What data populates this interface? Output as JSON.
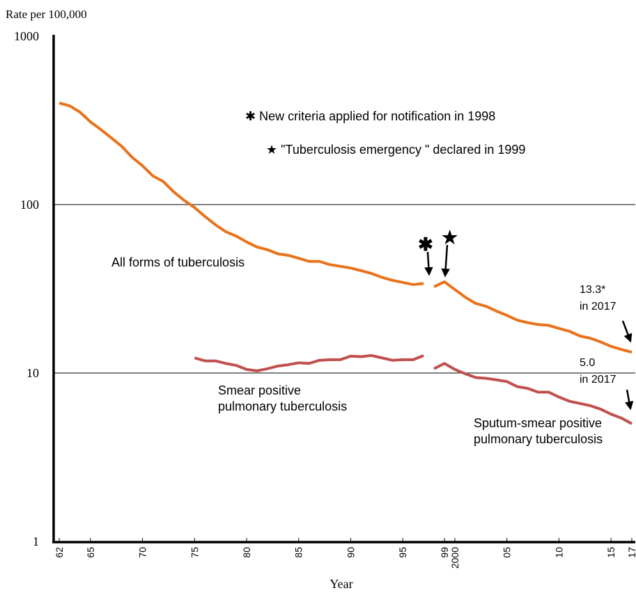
{
  "chart_data": {
    "type": "line",
    "y_label": "Rate per 100,000",
    "x_label": "Year",
    "yscale": "log",
    "ylim": [
      1,
      1000
    ],
    "yticks": [
      1,
      10,
      100,
      1000
    ],
    "xlim": [
      1962,
      2017
    ],
    "xticks": [
      {
        "value": 1962,
        "label": "62"
      },
      {
        "value": 1965,
        "label": "65"
      },
      {
        "value": 1970,
        "label": "70"
      },
      {
        "value": 1975,
        "label": "75"
      },
      {
        "value": 1980,
        "label": "80"
      },
      {
        "value": 1985,
        "label": "85"
      },
      {
        "value": 1990,
        "label": "90"
      },
      {
        "value": 1995,
        "label": "95"
      },
      {
        "value": 1999,
        "label": "99"
      },
      2000,
      {
        "value": 2005,
        "label": "05"
      },
      {
        "value": 2010,
        "label": "10"
      },
      {
        "value": 2015,
        "label": "15"
      },
      {
        "value": 2017,
        "label": "17"
      }
    ],
    "grid": true,
    "series": [
      {
        "name": "All forms of tuberculosis",
        "color": "#e8731c",
        "x": [
          1962,
          1963,
          1964,
          1965,
          1966,
          1967,
          1968,
          1969,
          1970,
          1971,
          1972,
          1973,
          1974,
          1975,
          1976,
          1977,
          1978,
          1979,
          1980,
          1981,
          1982,
          1983,
          1984,
          1985,
          1986,
          1987,
          1988,
          1989,
          1990,
          1991,
          1992,
          1993,
          1994,
          1995,
          1996,
          1997
        ],
        "values": [
          401,
          386,
          354,
          310,
          279,
          249,
          222,
          191,
          170,
          148,
          137,
          119,
          106,
          96,
          85,
          76,
          69,
          65,
          60,
          56,
          54,
          51,
          50,
          48,
          46,
          46,
          44,
          43,
          42,
          40.5,
          39,
          37,
          35.5,
          34.5,
          33.5,
          34
        ]
      },
      {
        "color": "#e8731c",
        "x": [
          1998,
          1999,
          2000,
          2001,
          2002,
          2003,
          2004,
          2005,
          2006,
          2007,
          2008,
          2009,
          2010,
          2011,
          2012,
          2013,
          2014,
          2015,
          2016,
          2017
        ],
        "values": [
          32.5,
          34.8,
          31.3,
          28.2,
          25.9,
          24.9,
          23.3,
          22.0,
          20.6,
          19.9,
          19.4,
          19.2,
          18.4,
          17.7,
          16.6,
          16.1,
          15.3,
          14.4,
          13.8,
          13.3
        ]
      },
      {
        "name": "Smear positive\npulmonary tuberculosis",
        "color": "#c0504d",
        "x": [
          1975,
          1976,
          1977,
          1978,
          1979,
          1980,
          1981,
          1982,
          1983,
          1984,
          1985,
          1986,
          1987,
          1988,
          1989,
          1990,
          1991,
          1992,
          1993,
          1994,
          1995,
          1996,
          1997
        ],
        "values": [
          12.3,
          11.8,
          11.8,
          11.4,
          11.1,
          10.5,
          10.3,
          10.6,
          11.0,
          11.2,
          11.5,
          11.4,
          11.9,
          12.0,
          12.0,
          12.6,
          12.5,
          12.7,
          12.3,
          11.9,
          12.0,
          12.0,
          12.7
        ]
      },
      {
        "name": "Sputum-smear positive\npulmonary tuberculosis",
        "color": "#c0504d",
        "x": [
          1998,
          1999,
          2000,
          2001,
          2002,
          2003,
          2004,
          2005,
          2006,
          2007,
          2008,
          2009,
          2010,
          2011,
          2012,
          2013,
          2014,
          2015,
          2016,
          2017
        ],
        "values": [
          10.6,
          11.4,
          10.5,
          9.9,
          9.4,
          9.3,
          9.1,
          8.9,
          8.3,
          8.1,
          7.7,
          7.7,
          7.2,
          6.8,
          6.6,
          6.4,
          6.1,
          5.7,
          5.4,
          5.0
        ]
      }
    ],
    "annotations": [
      {
        "text": "✱ New criteria applied for notification in 1998"
      },
      {
        "text": "★ \"Tuberculosis emergency \" declared in 1999"
      },
      {
        "text": "✱"
      },
      {
        "text": "★"
      },
      {
        "text": "13.3*\nin 2017"
      },
      {
        "text": "5.0\nin 2017"
      }
    ]
  }
}
